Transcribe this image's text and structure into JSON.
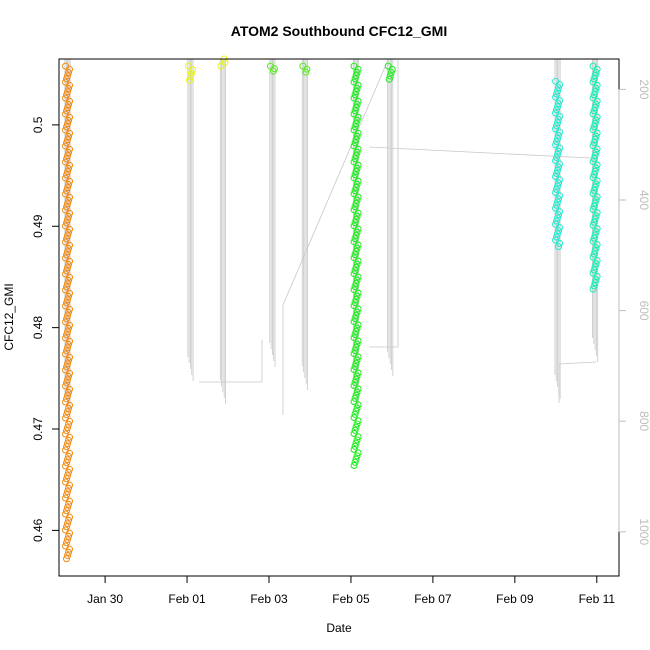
{
  "chart_data": {
    "type": "scatter",
    "title": "ATOM2 Southbound CFC12_GMI",
    "xlabel": "Date",
    "ylabel": "CFC12_GMI",
    "xlim": [
      "2017-01-28T21:00",
      "2017-02-11T13:00"
    ],
    "ylim": [
      0.4555,
      0.5065
    ],
    "y2lim": [
      1080,
      145
    ],
    "y2_reversed": true,
    "x_ticks": [
      {
        "date": "2017-01-30T00:00",
        "label": "Jan 30"
      },
      {
        "date": "2017-02-01T00:00",
        "label": "Feb 01"
      },
      {
        "date": "2017-02-03T00:00",
        "label": "Feb 03"
      },
      {
        "date": "2017-02-05T00:00",
        "label": "Feb 05"
      },
      {
        "date": "2017-02-07T00:00",
        "label": "Feb 07"
      },
      {
        "date": "2017-02-09T00:00",
        "label": "Feb 09"
      },
      {
        "date": "2017-02-11T00:00",
        "label": "Feb 11"
      }
    ],
    "y_ticks": [
      0.46,
      0.47,
      0.48,
      0.49,
      0.5
    ],
    "y2_ticks": [
      200,
      400,
      600,
      800,
      1000
    ],
    "grid": false,
    "series": [
      {
        "color": "#f58a14",
        "points": [
          {
            "x": "2017-01-29T02:00",
            "y_min": 0.4572,
            "y_max": 0.5058
          }
        ]
      },
      {
        "color": "#e8f412",
        "points": [
          {
            "x": "2017-02-01T02:00",
            "y_min": 0.5044,
            "y_max": 0.5058
          },
          {
            "x": "2017-02-01T21:00",
            "y_min": 0.5082,
            "y_max": 0.5058
          }
        ]
      },
      {
        "color": "#55ee1a",
        "points": [
          {
            "x": "2017-02-03T02:00",
            "y_min": 0.5053,
            "y_max": 0.5058
          },
          {
            "x": "2017-02-03T21:00",
            "y_min": 0.5052,
            "y_max": 0.5058
          }
        ]
      },
      {
        "color": "#1aee1a",
        "points": [
          {
            "x": "2017-02-05T03:00",
            "y_min": 0.4664,
            "y_max": 0.5058
          },
          {
            "x": "2017-02-05T23:00",
            "y_min": 0.5045,
            "y_max": 0.5058
          }
        ]
      },
      {
        "color": "#22ecd2",
        "points": [
          {
            "x": "2017-02-10T01:00",
            "y_min": 0.488,
            "y_max": 0.5043
          }
        ]
      },
      {
        "color": "#12f0b4",
        "points": [
          {
            "x": "2017-02-10T23:00",
            "y_min": 0.4838,
            "y_max": 0.5058
          }
        ]
      }
    ]
  }
}
